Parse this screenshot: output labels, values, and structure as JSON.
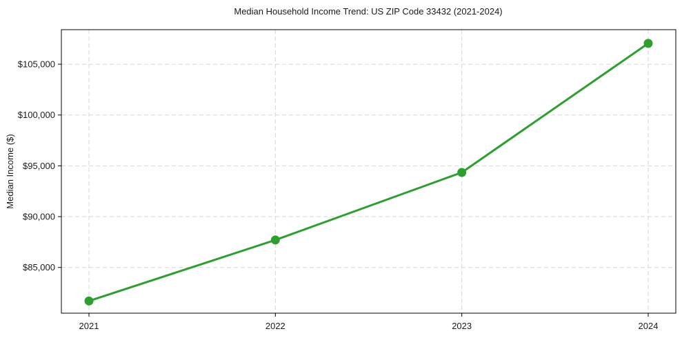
{
  "chart_data": {
    "type": "line",
    "title": "Median Household Income Trend: US ZIP Code 33432 (2021-2024)",
    "xlabel": "",
    "ylabel": "Median Income ($)",
    "categories": [
      "2021",
      "2022",
      "2023",
      "2024"
    ],
    "series": [
      {
        "name": "Median Household Income",
        "values": [
          81700,
          87700,
          94350,
          107050
        ]
      }
    ],
    "y_ticks": [
      {
        "value": 85000,
        "label": "$85,000"
      },
      {
        "value": 90000,
        "label": "$90,000"
      },
      {
        "value": 95000,
        "label": "$95,000"
      },
      {
        "value": 100000,
        "label": "$100,000"
      },
      {
        "value": 105000,
        "label": "$105,000"
      }
    ],
    "ylim": [
      80500,
      108400
    ],
    "grid": true,
    "legend": "none",
    "line_color": "#2ca02c",
    "marker": "circle"
  }
}
